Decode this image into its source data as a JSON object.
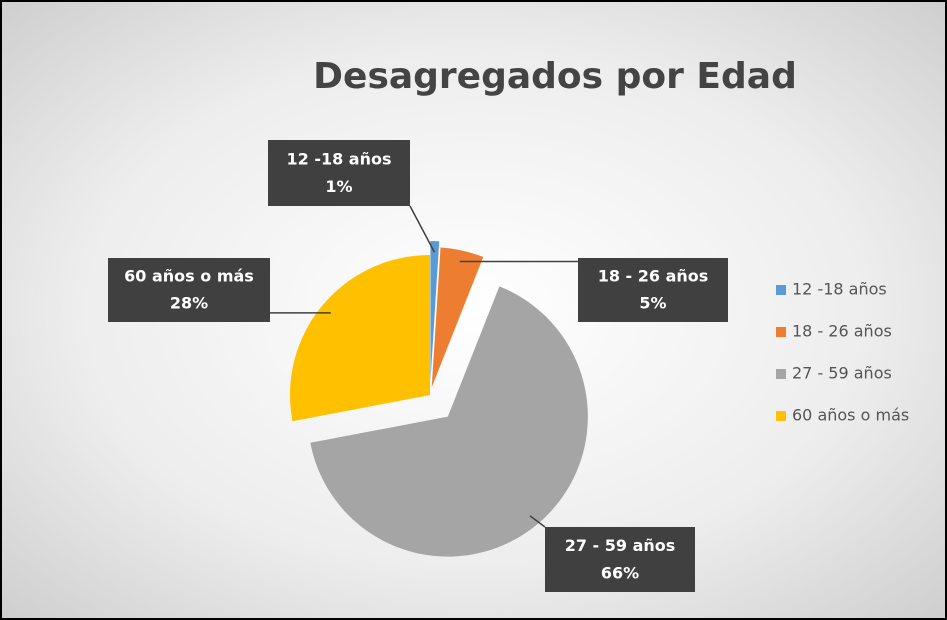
{
  "chart_data": {
    "type": "pie",
    "title": "Desagregados por Edad",
    "categories": [
      "12  -18 años",
      "18 - 26 años",
      "27 - 59 años",
      "60 años o más"
    ],
    "values": [
      1,
      5,
      66,
      28
    ],
    "value_labels": [
      "1%",
      "5%",
      "66%",
      "28%"
    ],
    "colors": [
      "#5b9bd5",
      "#ed7d31",
      "#a5a5a5",
      "#ffc000"
    ],
    "legend": "right"
  }
}
